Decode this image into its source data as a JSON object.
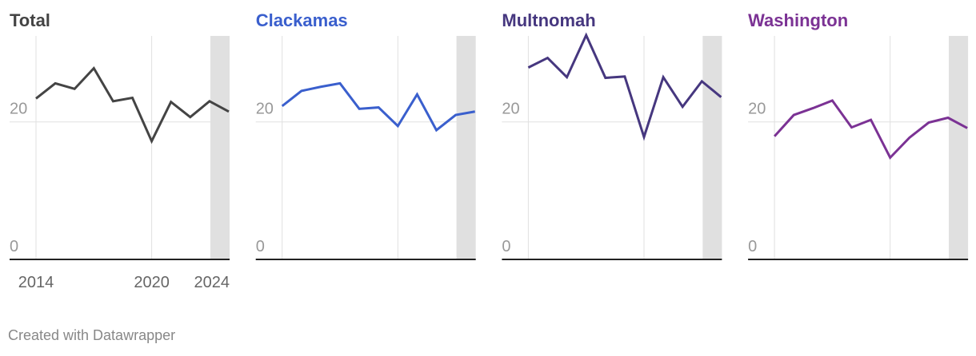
{
  "chart_data": [
    {
      "type": "line",
      "title": "Total",
      "color": "#444444",
      "x": [
        2014,
        2015,
        2016,
        2017,
        2018,
        2019,
        2020,
        2021,
        2022,
        2023,
        2024
      ],
      "values": [
        23.4,
        25.6,
        24.8,
        27.8,
        23.0,
        23.5,
        17.2,
        22.9,
        20.7,
        23.0,
        21.5
      ],
      "ylim": [
        0,
        32.5
      ],
      "yticks": [
        0,
        20
      ],
      "xlim": [
        2014,
        2024
      ],
      "xticks": [
        2014,
        2020,
        2024
      ],
      "xgrid": [
        2014,
        2020
      ],
      "shade": [
        2023,
        2024
      ]
    },
    {
      "type": "line",
      "title": "Clackamas",
      "color": "#3a5fcd",
      "x": [
        2014,
        2015,
        2016,
        2017,
        2018,
        2019,
        2020,
        2021,
        2022,
        2023,
        2024
      ],
      "values": [
        22.3,
        24.5,
        25.1,
        25.6,
        21.9,
        22.1,
        19.4,
        24.0,
        18.8,
        21.0,
        21.5
      ],
      "ylim": [
        0,
        32.5
      ],
      "yticks": [
        0,
        20
      ],
      "xlim": [
        2014,
        2024
      ],
      "xgrid": [
        2014,
        2020
      ],
      "shade": [
        2023,
        2024
      ]
    },
    {
      "type": "line",
      "title": "Multnomah",
      "color": "#46377f",
      "x": [
        2014,
        2015,
        2016,
        2017,
        2018,
        2019,
        2020,
        2021,
        2022,
        2023,
        2024
      ],
      "values": [
        27.9,
        29.3,
        26.5,
        32.6,
        26.4,
        26.6,
        17.8,
        26.5,
        22.2,
        25.9,
        23.6
      ],
      "ylim": [
        0,
        32.5
      ],
      "yticks": [
        0,
        20
      ],
      "xlim": [
        2014,
        2024
      ],
      "xgrid": [
        2014,
        2020
      ],
      "shade": [
        2023,
        2024
      ]
    },
    {
      "type": "line",
      "title": "Washington",
      "color": "#7b3294",
      "x": [
        2014,
        2015,
        2016,
        2017,
        2018,
        2019,
        2020,
        2021,
        2022,
        2023,
        2024
      ],
      "values": [
        17.9,
        21.0,
        22.0,
        23.1,
        19.2,
        20.3,
        14.8,
        17.7,
        19.9,
        20.6,
        19.1
      ],
      "ylim": [
        0,
        32.5
      ],
      "yticks": [
        0,
        20
      ],
      "xlim": [
        2014,
        2024
      ],
      "xgrid": [
        2014,
        2020
      ],
      "shade": [
        2023,
        2024
      ]
    }
  ],
  "footer": "Created with Datawrapper"
}
